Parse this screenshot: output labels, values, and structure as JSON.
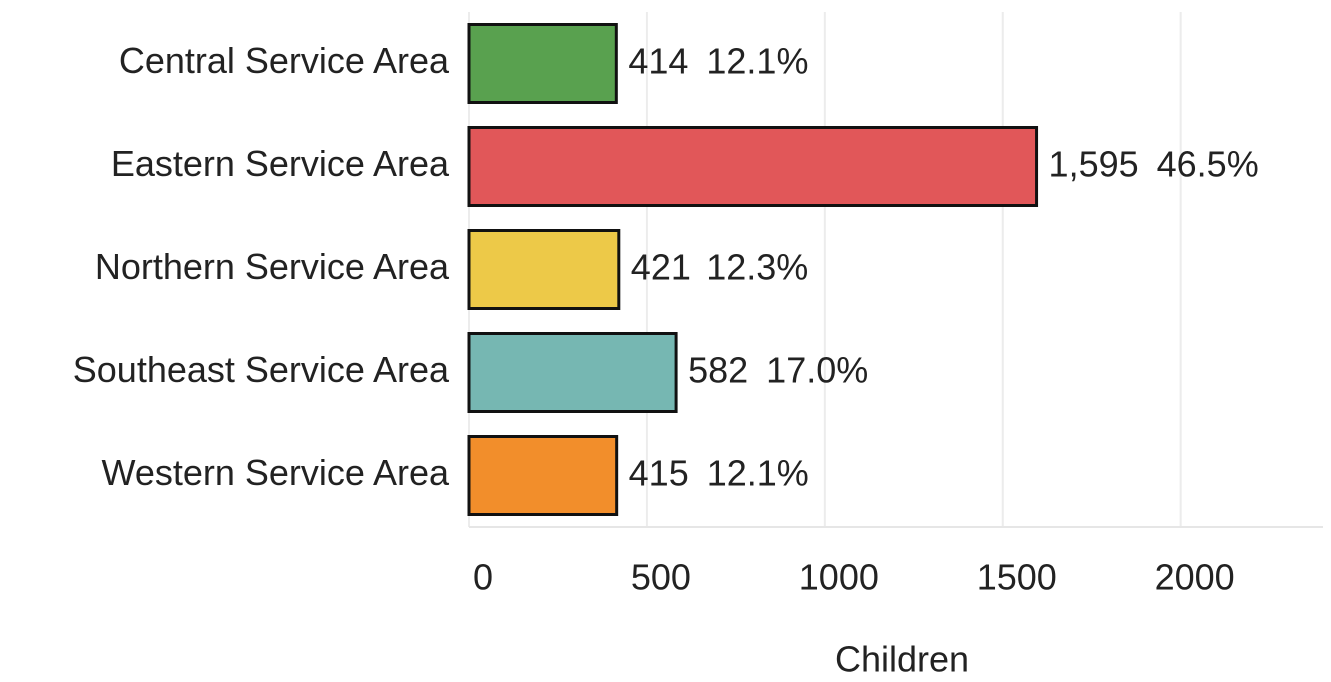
{
  "chart_data": {
    "type": "bar",
    "orientation": "horizontal",
    "categories": [
      "Central Service Area",
      "Eastern Service Area",
      "Northern Service Area",
      "Southeast Service Area",
      "Western Service Area"
    ],
    "values": [
      414,
      1595,
      421,
      582,
      415
    ],
    "value_labels": [
      "414",
      "1,595",
      "421",
      "582",
      "415"
    ],
    "percent_labels": [
      "12.1%",
      "46.5%",
      "12.3%",
      "17.0%",
      "12.1%"
    ],
    "colors": [
      "#59a14f",
      "#e15759",
      "#edc948",
      "#76b7b2",
      "#f28e2b"
    ],
    "xlabel": "Children",
    "xlim": [
      0,
      2400
    ],
    "xticks": [
      0,
      500,
      1000,
      1500,
      2000
    ],
    "grid": true
  }
}
